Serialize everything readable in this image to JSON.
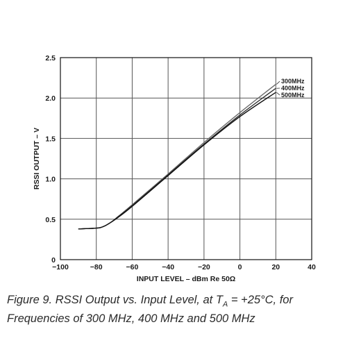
{
  "chart_data": {
    "type": "line",
    "xlabel": "INPUT LEVEL – dBm Re 50Ω",
    "ylabel": "RSSI OUTPUT – V",
    "xlim": [
      -100,
      40
    ],
    "ylim": [
      0,
      2.5
    ],
    "x_ticks": [
      -100,
      -80,
      -60,
      -40,
      -20,
      0,
      20,
      40
    ],
    "x_tick_labels": [
      "−100",
      "−80",
      "−60",
      "−40",
      "−20",
      "0",
      "20",
      "40"
    ],
    "y_ticks": [
      0,
      0.5,
      1.0,
      1.5,
      2.0,
      2.5
    ],
    "y_tick_labels": [
      "0",
      "0.5",
      "1.0",
      "1.5",
      "2.0",
      "2.5"
    ],
    "grid": true,
    "legend_position": "top-right",
    "series": [
      {
        "name": "300MHz",
        "x": [
          -90,
          -80,
          -76,
          -72,
          -68,
          -60,
          -40,
          -20,
          0,
          20
        ],
        "y": [
          0.38,
          0.39,
          0.41,
          0.46,
          0.53,
          0.68,
          1.06,
          1.45,
          1.82,
          2.17
        ]
      },
      {
        "name": "400MHz",
        "x": [
          -90,
          -80,
          -76,
          -72,
          -68,
          -60,
          -40,
          -20,
          0,
          20
        ],
        "y": [
          0.38,
          0.39,
          0.41,
          0.46,
          0.53,
          0.67,
          1.05,
          1.43,
          1.79,
          2.12
        ]
      },
      {
        "name": "500MHz",
        "x": [
          -90,
          -80,
          -76,
          -72,
          -68,
          -60,
          -40,
          -20,
          0,
          20
        ],
        "y": [
          0.38,
          0.39,
          0.41,
          0.46,
          0.52,
          0.66,
          1.04,
          1.42,
          1.77,
          2.07
        ]
      }
    ]
  },
  "caption": {
    "prefix": "Figure 9.  RSSI Output vs. Input Level, at T",
    "subscript": "A",
    "suffix": " = +25°C, for Frequencies of 300 MHz, 400 MHz and 500 MHz"
  }
}
